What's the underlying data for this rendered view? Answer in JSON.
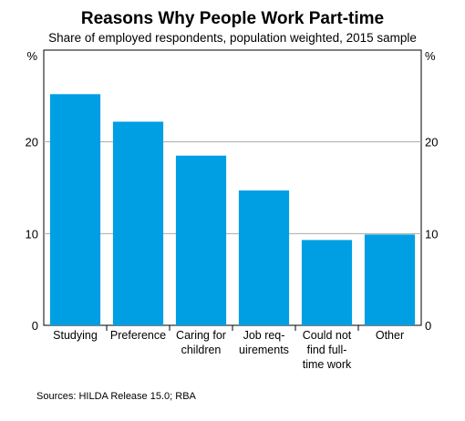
{
  "chart_data": {
    "type": "bar",
    "title": "Reasons Why People Work Part-time",
    "subtitle": "Share of employed respondents, population weighted, 2015 sample",
    "ylabel_left": "%",
    "ylabel_right": "%",
    "ylim": [
      0,
      30
    ],
    "yticks": [
      0,
      10,
      20
    ],
    "grid": true,
    "categories": [
      [
        "Studying"
      ],
      [
        "Preference"
      ],
      [
        "Caring for",
        "children"
      ],
      [
        "Job req-",
        "uirements"
      ],
      [
        "Could not",
        "find full-",
        "time work"
      ],
      [
        "Other"
      ]
    ],
    "values": [
      25.2,
      22.2,
      18.5,
      14.7,
      9.3,
      9.9
    ],
    "bar_color": "#009FE3",
    "source": "Sources:  HILDA Release 15.0; RBA"
  }
}
